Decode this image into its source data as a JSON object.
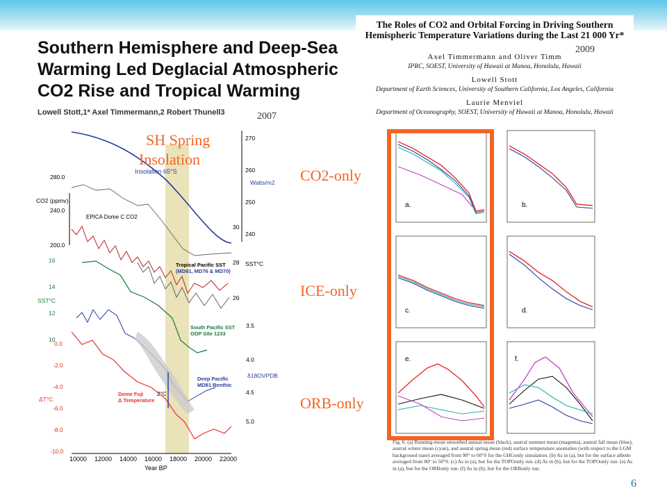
{
  "left_paper": {
    "title": "Southern Hemisphere and Deep-Sea Warming Led Deglacial Atmospheric CO2 Rise and Tropical Warming",
    "authors": "Lowell Stott,1* Axel Timmermann,2 Robert Thunell3",
    "year": "2007"
  },
  "right_paper": {
    "title": "The Roles of CO2 and Orbital Forcing in Driving Southern Hemispheric Temperature Variations during the Last 21 000 Yr*",
    "author1": "Axel Timmermann and Oliver Timm",
    "affil1": "IPRC, SOEST, University of Hawaii at Manoa, Honolulu, Hawaii",
    "author2": "Lowell Stott",
    "affil2": "Department of Earth Sciences, University of Southern California, Los Angeles, California",
    "author3": "Laurie Menviel",
    "affil3": "Department of Oceanography, SOEST, University of Hawaii at Manoa, Honolulu, Hawaii",
    "year": "2009",
    "caption": "Fig. 6. (a) Running-mean smoothed annual mean (black), austral summer mean (magenta), austral fall mean (blue), austral winter mean (cyan), and austral spring mean (red) surface temperature anomalies (with respect to the LGM background state) averaged from 90° to 60°S for the GHGonly simulation. (b) As in (a), but for the surface albedo averaged from 80° to 50°S. (c) As in (a), but for the TOPOonly run. (d) As in (b), but for the TOPOonly run. (e) As in (a), but for the ORBonly run. (f) As in (b), but for the ORBonly run."
  },
  "annotations": {
    "sh_spring": "SH Spring",
    "insolation": "Insolation",
    "co2_only": "CO2-only",
    "ice_only": "ICE-only",
    "orb_only": "ORB-only"
  },
  "left_chart": {
    "insolation_label": "Insolation 65°S",
    "watts": "Watts/m2",
    "co2_axis": "CO2 (ppmv)",
    "epica": "EPICA Dome C CO2",
    "trop_sst": "Tropical Pacific SST",
    "trop_cores": "(MD81, MD76 & MD70)",
    "sst_unit": "SST°C",
    "sst_left": "SST°C",
    "sp_sst": "South Pacific SST",
    "odp": "ODP Site 1233",
    "deep_pac": "Deep Pacific",
    "md81": "MD81 Benthic",
    "d18o": "δ18OVPDB",
    "domefuji": "Dome Fuji",
    "dtemp": "Δ Temperature",
    "dt": "ΔT°C",
    "two_c": "2°C",
    "xlabel": "Year BP",
    "xticks": [
      "10000",
      "12000",
      "14000",
      "16000",
      "18000",
      "20000",
      "22000"
    ],
    "co2_ticks": [
      "280.0",
      "240.0",
      "200.0"
    ],
    "sst_ticks": [
      "16",
      "14",
      "12",
      "10"
    ],
    "dt_ticks": [
      "0.0",
      "-2.0",
      "-4.0",
      "-6.0",
      "-8.0",
      "-10.0"
    ],
    "insol_ticks": [
      "270",
      "260",
      "250",
      "240"
    ],
    "sst_right_ticks": [
      "30",
      "28",
      "26"
    ],
    "d18o_ticks": [
      "3.5",
      "4.0",
      "4.5",
      "5.0"
    ]
  },
  "panels": {
    "a": "a.",
    "b": "b.",
    "c": "c.",
    "d": "d.",
    "e": "e.",
    "f": "f."
  },
  "slide_number": "6"
}
